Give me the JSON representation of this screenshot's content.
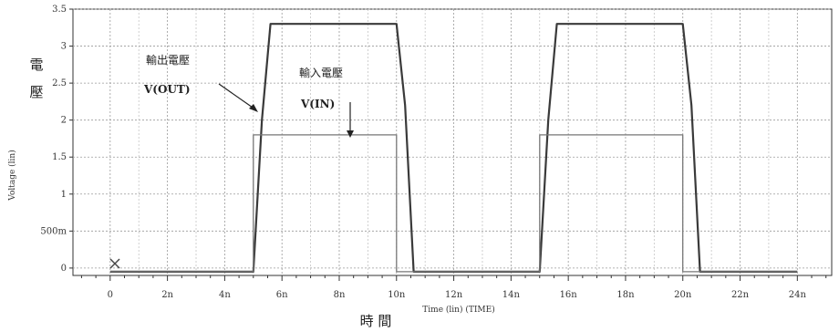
{
  "chart_data": {
    "type": "line",
    "xlabel": "Time (lin) (TIME)",
    "ylabel": "Voltage (lin)",
    "xlabel_cjk": "時 間",
    "ylabel_cjk": [
      "電",
      "壓"
    ],
    "xlim": [
      -1.3,
      25.2
    ],
    "ylim": [
      -0.1,
      3.5
    ],
    "x_ticks": [
      0,
      2,
      4,
      6,
      8,
      10,
      12,
      14,
      16,
      18,
      20,
      22,
      24
    ],
    "x_tick_labels": [
      "0",
      "2n",
      "4n",
      "6n",
      "8n",
      "10n",
      "12n",
      "14n",
      "16n",
      "18n",
      "20n",
      "22n",
      "24n"
    ],
    "y_ticks": [
      0,
      0.5,
      1,
      1.5,
      2,
      2.5,
      3,
      3.5
    ],
    "y_tick_labels": [
      "0",
      "500m",
      "1",
      "1.5",
      "2",
      "2.5",
      "3",
      "3.5"
    ],
    "grid": true,
    "series": [
      {
        "name": "V(OUT)",
        "color": "#3a3a3a",
        "x": [
          0,
          5.0,
          5.3,
          5.6,
          10.0,
          10.3,
          10.6,
          15.0,
          15.3,
          15.6,
          20.0,
          20.3,
          20.6,
          24.0
        ],
        "y": [
          -0.05,
          -0.05,
          2.0,
          3.3,
          3.3,
          2.2,
          -0.05,
          -0.05,
          2.0,
          3.3,
          3.3,
          2.2,
          -0.05,
          -0.05
        ]
      },
      {
        "name": "V(IN)",
        "color": "#777777",
        "x": [
          0,
          5.0,
          5.0,
          10.0,
          10.0,
          15.0,
          15.0,
          20.0,
          20.0,
          24.0
        ],
        "y": [
          -0.05,
          -0.05,
          1.8,
          1.8,
          -0.05,
          -0.05,
          1.8,
          1.8,
          -0.05,
          -0.05
        ]
      }
    ],
    "annotations": [
      {
        "text_cjk": "輸出電壓",
        "text": "V(OUT)"
      },
      {
        "text_cjk": "輸入電壓",
        "text": "V(IN)"
      }
    ]
  }
}
